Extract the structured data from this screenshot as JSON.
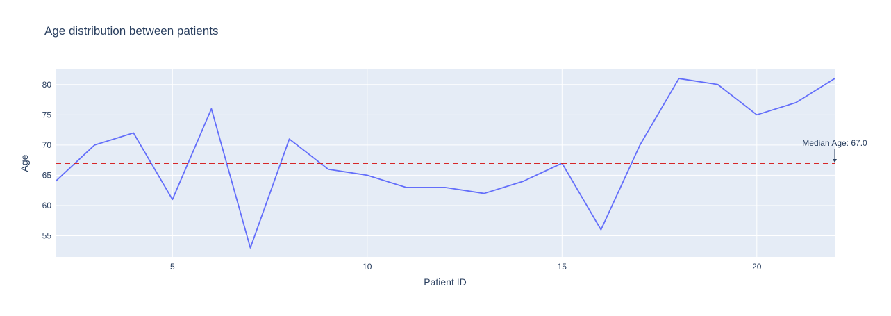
{
  "chart_data": {
    "type": "line",
    "title": "Age distribution between patients",
    "xlabel": "Patient ID",
    "ylabel": "Age",
    "x": [
      2,
      3,
      4,
      5,
      6,
      7,
      8,
      9,
      10,
      11,
      12,
      13,
      14,
      15,
      16,
      17,
      18,
      19,
      20,
      21,
      22
    ],
    "series": [
      {
        "values": [
          64,
          70,
          72,
          61,
          76,
          53,
          71,
          66,
          65,
          63,
          63,
          62,
          64,
          67,
          56,
          70,
          81,
          80,
          75,
          77,
          81
        ]
      }
    ],
    "xlim": [
      2,
      22
    ],
    "ylim": [
      51.5,
      82.5
    ],
    "xticks": [
      5,
      10,
      15,
      20
    ],
    "yticks": [
      55,
      60,
      65,
      70,
      75,
      80
    ],
    "grid": true,
    "reference_line": {
      "y": 67,
      "style": "dashed",
      "annotation": "Median Age: 67.0"
    },
    "colors": {
      "line": "#636efa",
      "median": "#d62728",
      "plot_bg": "#e5ecf6",
      "grid": "#ffffff",
      "text": "#2a3f5f"
    }
  }
}
